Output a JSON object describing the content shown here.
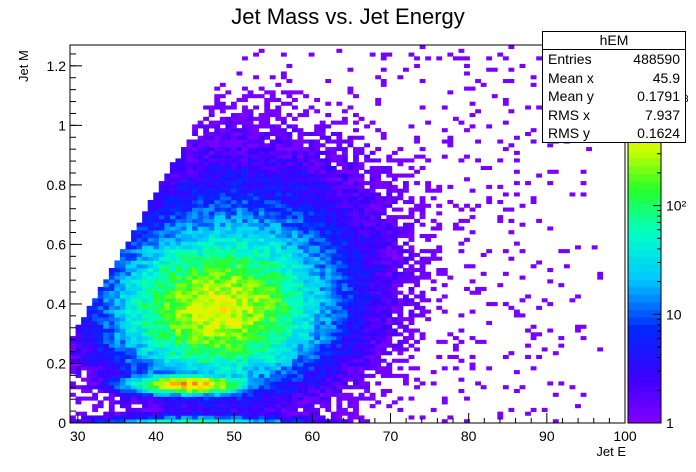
{
  "chart_data": {
    "type": "heatmap",
    "title": "Jet Mass vs. Jet Energy",
    "xlabel": "Jet E",
    "ylabel": "Jet M",
    "xlim": [
      29,
      100
    ],
    "ylim": [
      0,
      1.27
    ],
    "x_ticks": [
      "30",
      "40",
      "50",
      "60",
      "70",
      "80",
      "90",
      "100"
    ],
    "y_ticks": [
      "0",
      "0.2",
      "0.4",
      "0.6",
      "0.8",
      "1",
      "1.2"
    ],
    "z_scale": "log",
    "zlim": [
      1,
      3000
    ],
    "z_ticks": [
      "1",
      "10",
      "10²"
    ],
    "z_exponent_label": "3",
    "stats": {
      "name": "hEM",
      "rows": [
        {
          "label": "Entries",
          "value": "488590"
        },
        {
          "label": "Mean x",
          "value": "45.9"
        },
        {
          "label": "Mean y",
          "value": "0.1791"
        },
        {
          "label": "RMS x",
          "value": "7.937"
        },
        {
          "label": "RMS y",
          "value": "0.1624"
        }
      ]
    }
  }
}
